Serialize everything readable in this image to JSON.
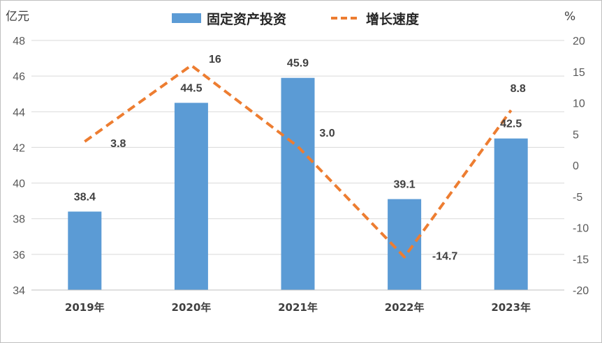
{
  "chart_data": {
    "type": "bar",
    "categories": [
      "2019年",
      "2020年",
      "2021年",
      "2022年",
      "2023年"
    ],
    "series": [
      {
        "name": "固定资产投资",
        "type": "bar",
        "axis": "left",
        "values": [
          38.4,
          44.5,
          45.9,
          39.1,
          42.5
        ],
        "labels": [
          "38.4",
          "44.5",
          "45.9",
          "39.1",
          "42.5"
        ],
        "color": "#5b9bd5"
      },
      {
        "name": "增长速度",
        "type": "line",
        "axis": "right",
        "style": "dashed",
        "values": [
          3.8,
          16,
          3.0,
          -14.7,
          8.8
        ],
        "labels": [
          "3.8",
          "16",
          "3.0",
          "-14.7",
          "8.8"
        ],
        "color": "#ed7d31"
      }
    ],
    "y_left": {
      "unit": "亿元",
      "ylim": [
        34,
        48
      ],
      "ticks": [
        "34",
        "36",
        "38",
        "40",
        "42",
        "44",
        "46",
        "48"
      ]
    },
    "y_right": {
      "unit": "%",
      "ylim": [
        -20,
        20
      ],
      "ticks": [
        "-20",
        "-15",
        "-10",
        "-5",
        "0",
        "5",
        "10",
        "15",
        "20"
      ]
    },
    "grid": true,
    "legend": "top-center"
  }
}
